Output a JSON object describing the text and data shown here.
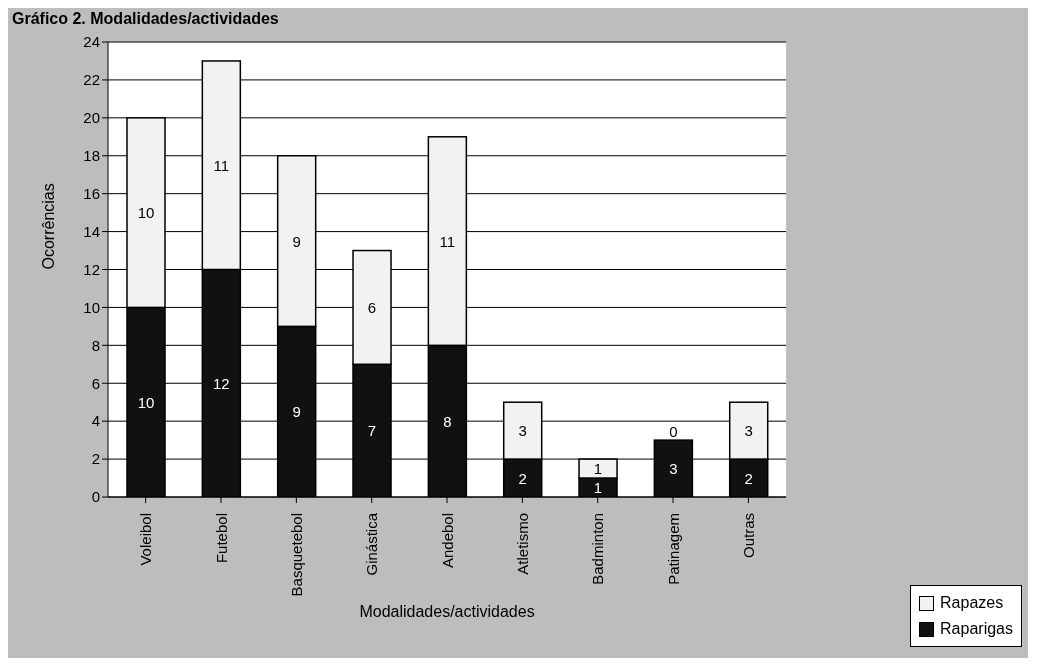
{
  "chart_data": {
    "type": "bar",
    "title": "Gráfico 2. Modalidades/actividades",
    "xlabel": "Modalidades/actividades",
    "ylabel": "Ocorrências",
    "categories": [
      "Voleibol",
      "Futebol",
      "Basquetebol",
      "Ginástica",
      "Andebol",
      "Atletismo",
      "Badminton",
      "Patinagem",
      "Outras"
    ],
    "series": [
      {
        "name": "Raparigas",
        "color": "#111111",
        "values": [
          10,
          12,
          9,
          7,
          8,
          2,
          1,
          3,
          2
        ]
      },
      {
        "name": "Rapazes",
        "color": "#f2f2f2",
        "values": [
          10,
          11,
          9,
          6,
          11,
          3,
          1,
          0,
          3
        ]
      }
    ],
    "stacked": true,
    "ylim": [
      0,
      24
    ],
    "yticks": [
      0,
      2,
      4,
      6,
      8,
      10,
      12,
      14,
      16,
      18,
      20,
      22,
      24
    ],
    "grid": "y",
    "legend": "bottom right",
    "data_labels": true
  }
}
